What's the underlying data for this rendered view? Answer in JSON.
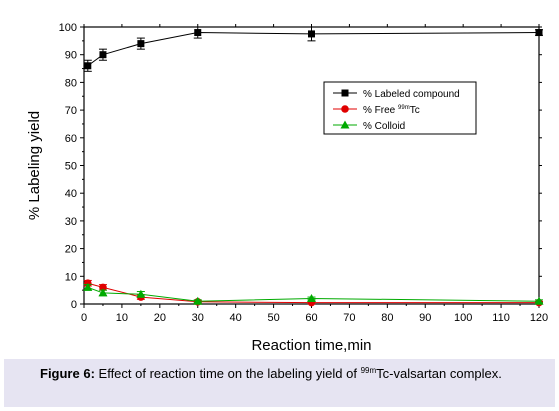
{
  "chart_data": {
    "type": "line",
    "xlabel": "Reaction time,min",
    "ylabel": "% Labeling yield",
    "xlim": [
      0,
      120
    ],
    "ylim": [
      0,
      100
    ],
    "xticks": [
      0,
      10,
      20,
      30,
      40,
      50,
      60,
      70,
      80,
      90,
      100,
      110,
      120
    ],
    "yticks": [
      0,
      10,
      20,
      30,
      40,
      50,
      60,
      70,
      80,
      90,
      100
    ],
    "legend_position": "upper-right",
    "series": [
      {
        "name_parts": [
          "% Labeled compound"
        ],
        "color": "#000000",
        "marker": "square",
        "x": [
          1,
          5,
          15,
          30,
          60,
          120
        ],
        "y": [
          86,
          90,
          94,
          98,
          97.5,
          98
        ],
        "err": [
          2,
          2,
          2,
          2,
          2.5,
          1
        ]
      },
      {
        "name_parts": [
          "% Free ",
          "99m",
          "Tc"
        ],
        "color": "#e00000",
        "marker": "circle",
        "x": [
          1,
          5,
          15,
          30,
          60,
          120
        ],
        "y": [
          7.5,
          6,
          2.5,
          0.8,
          0.5,
          0.5
        ],
        "err": [
          1,
          1,
          0.8,
          0.5,
          0.4,
          0.4
        ]
      },
      {
        "name_parts": [
          "% Colloid"
        ],
        "color": "#00aa00",
        "marker": "triangle",
        "x": [
          1,
          5,
          15,
          30,
          60,
          120
        ],
        "y": [
          6,
          4,
          3.5,
          1,
          2,
          1
        ],
        "err": [
          1,
          1,
          1,
          0.5,
          0.5,
          0.5
        ]
      }
    ]
  },
  "caption": {
    "label": "Figure 6:",
    "text_before": " Effect of reaction time on the labeling yield of ",
    "isotope_sup": "99m",
    "text_after": "Tc-valsartan complex."
  }
}
